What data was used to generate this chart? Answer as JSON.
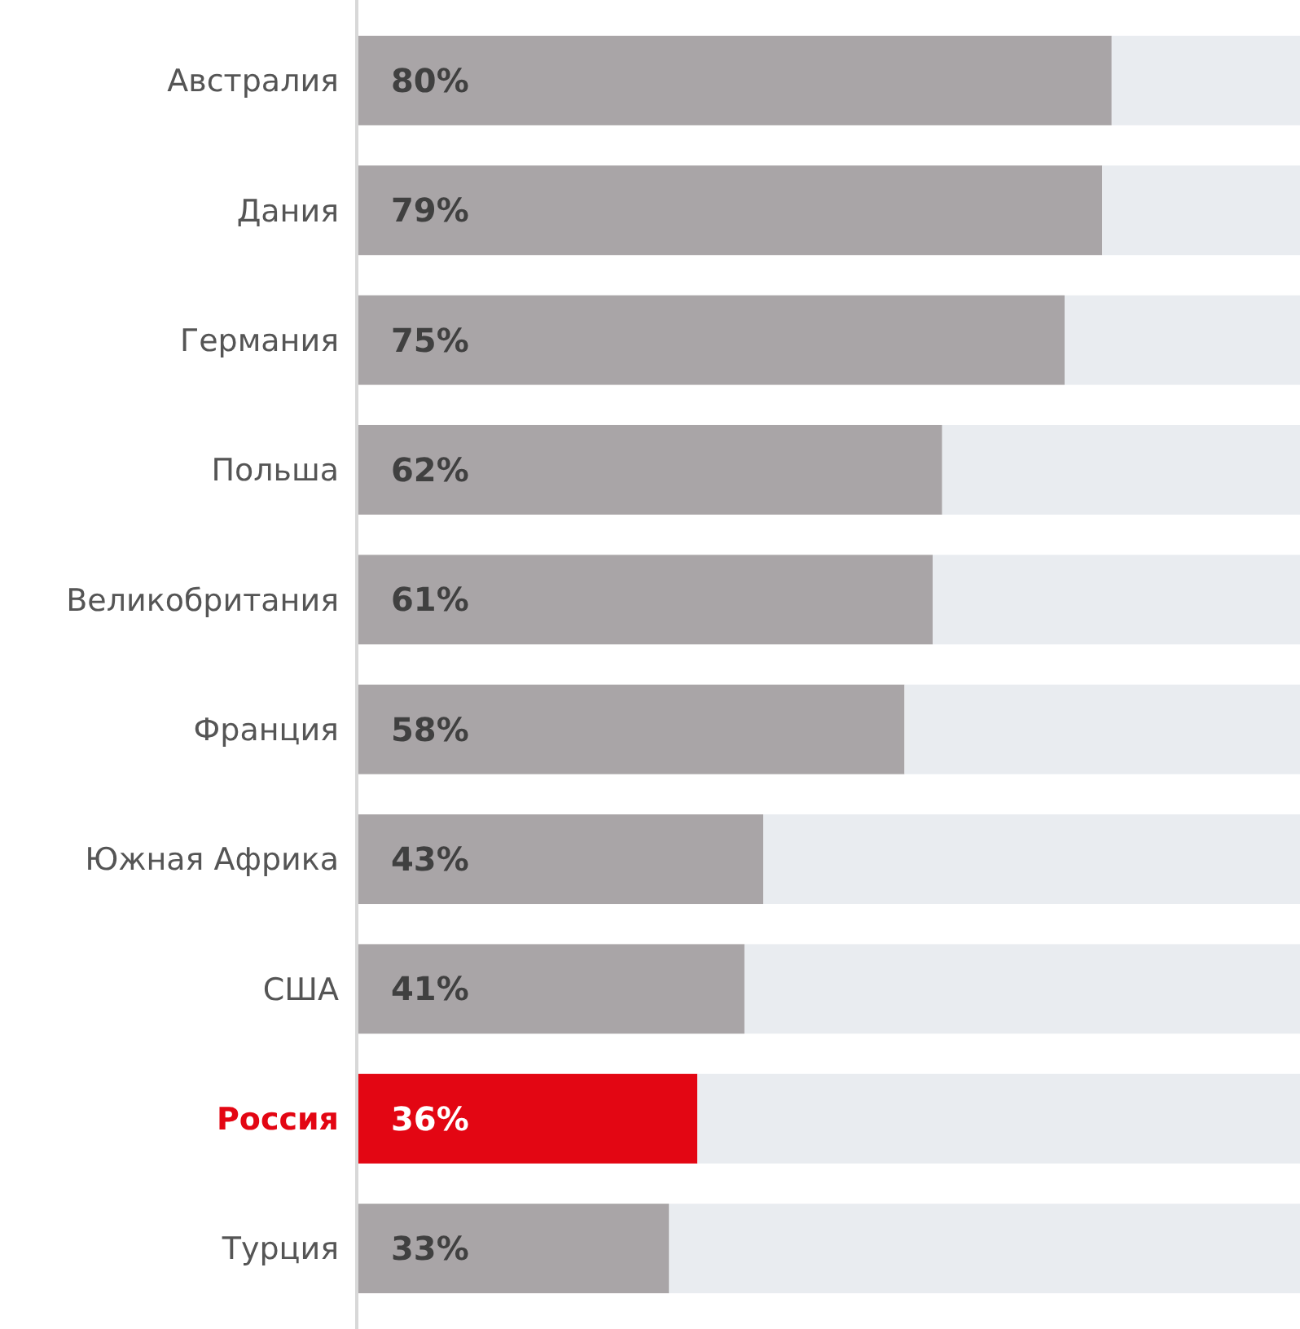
{
  "chart_data": {
    "type": "bar",
    "orientation": "horizontal",
    "stacked": true,
    "categories": [
      "Австралия",
      "Дания",
      "Германия",
      "Польша",
      "Великобритания",
      "Франция",
      "Южная Африка",
      "США",
      "Россия",
      "Турция"
    ],
    "xlim": [
      0,
      100
    ],
    "tick_labels": "y",
    "series": [
      {
        "color": "#a9a5a7",
        "colors": [
          "#a9a5a7",
          "#a9a5a7",
          "#a9a5a7",
          "#a9a5a7",
          "#a9a5a7",
          "#a9a5a7",
          "#a9a5a7",
          "#a9a5a7",
          "#e30613",
          "#a9a5a7"
        ],
        "values": [
          80,
          79,
          75,
          62,
          61,
          58,
          43,
          41,
          36,
          33
        ],
        "value_labels": [
          "80%",
          "79%",
          "75%",
          "62%",
          "61%",
          "58%",
          "43%",
          "41%",
          "36%",
          "33%"
        ]
      },
      {
        "color": "#e9ecf0",
        "values": [
          20,
          21,
          25,
          38,
          39,
          42,
          57,
          59,
          64,
          67
        ]
      }
    ]
  }
}
